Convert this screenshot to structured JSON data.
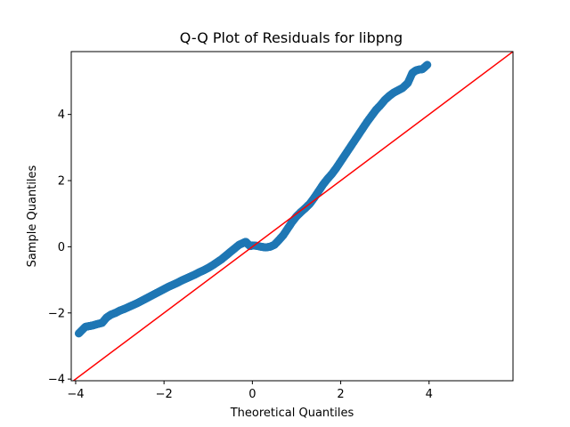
{
  "chart_data": {
    "type": "scatter",
    "title": "Q-Q Plot of Residuals for libpng",
    "xlabel": "Theoretical Quantiles",
    "ylabel": "Sample Quantiles",
    "xlim": [
      -4.1,
      5.9
    ],
    "ylim": [
      -4.05,
      5.9
    ],
    "xticks": [
      -4,
      -2,
      0,
      2,
      4
    ],
    "yticks": [
      -4,
      -2,
      0,
      2,
      4
    ],
    "grid": false,
    "series": [
      {
        "role": "sample-quantiles",
        "color": "#1f77b4",
        "marker": "circle",
        "x": [
          -3.93,
          -3.78,
          -3.7,
          -3.62,
          -3.52,
          -3.4,
          -3.3,
          -3.2,
          -3.1,
          -3.0,
          -2.9,
          -2.8,
          -2.7,
          -2.6,
          -2.5,
          -2.4,
          -2.3,
          -2.2,
          -2.1,
          -2.0,
          -1.9,
          -1.8,
          -1.7,
          -1.6,
          -1.5,
          -1.4,
          -1.3,
          -1.2,
          -1.1,
          -1.0,
          -0.9,
          -0.8,
          -0.7,
          -0.6,
          -0.5,
          -0.4,
          -0.3,
          -0.2,
          -0.15,
          -0.1,
          -0.05,
          0.0,
          0.1,
          0.2,
          0.3,
          0.4,
          0.5,
          0.6,
          0.7,
          0.8,
          0.9,
          1.0,
          1.1,
          1.2,
          1.3,
          1.4,
          1.5,
          1.6,
          1.7,
          1.8,
          1.9,
          2.0,
          2.1,
          2.2,
          2.3,
          2.4,
          2.5,
          2.6,
          2.7,
          2.8,
          2.9,
          3.0,
          3.1,
          3.2,
          3.3,
          3.4,
          3.52,
          3.62,
          3.7,
          3.78,
          3.85,
          3.96
        ],
        "y": [
          -2.62,
          -2.42,
          -2.4,
          -2.38,
          -2.34,
          -2.3,
          -2.14,
          -2.05,
          -2.0,
          -1.93,
          -1.88,
          -1.82,
          -1.76,
          -1.7,
          -1.63,
          -1.56,
          -1.49,
          -1.42,
          -1.35,
          -1.28,
          -1.21,
          -1.15,
          -1.09,
          -1.02,
          -0.96,
          -0.9,
          -0.84,
          -0.77,
          -0.71,
          -0.64,
          -0.56,
          -0.47,
          -0.38,
          -0.27,
          -0.16,
          -0.05,
          0.06,
          0.12,
          0.15,
          0.08,
          0.02,
          0.04,
          0.03,
          0.0,
          -0.02,
          0.0,
          0.06,
          0.2,
          0.35,
          0.55,
          0.75,
          0.92,
          1.05,
          1.17,
          1.3,
          1.48,
          1.68,
          1.88,
          2.05,
          2.2,
          2.38,
          2.58,
          2.78,
          2.98,
          3.18,
          3.38,
          3.58,
          3.78,
          3.96,
          4.14,
          4.28,
          4.44,
          4.56,
          4.66,
          4.73,
          4.8,
          4.95,
          5.25,
          5.33,
          5.36,
          5.37,
          5.5
        ]
      },
      {
        "role": "reference-line",
        "color": "#ff0000",
        "line": true,
        "x": [
          -4.1,
          5.9
        ],
        "y": [
          -4.1,
          5.9
        ]
      }
    ]
  }
}
